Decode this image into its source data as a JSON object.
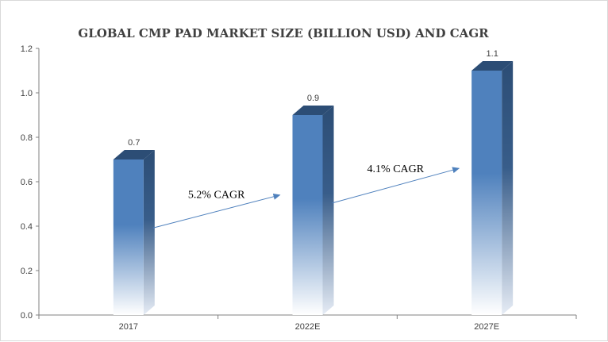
{
  "chart_data": {
    "type": "bar",
    "title": "GLOBAL CMP PAD MARKET SIZE  (BILLION USD) AND CAGR",
    "categories": [
      "2017",
      "2022E",
      "2027E"
    ],
    "values": [
      0.7,
      0.9,
      1.1
    ],
    "data_labels": [
      "0.7",
      "0.9",
      "1.1"
    ],
    "ylim": [
      0,
      1.2
    ],
    "yticks": [
      "0.0",
      "0.2",
      "0.4",
      "0.6",
      "0.8",
      "1.0",
      "1.2"
    ],
    "grid": false,
    "annotations": [
      {
        "text": "5.2% CAGR",
        "from_category": "2017",
        "to_category": "2022E"
      },
      {
        "text": "4.1% CAGR",
        "from_category": "2022E",
        "to_category": "2027E"
      }
    ],
    "colors": {
      "bar": "#4f81bd",
      "bar_side": "#385d8a",
      "bar_top": "#2c4d75",
      "arrow": "#4f81bd",
      "axis": "#808080"
    }
  }
}
